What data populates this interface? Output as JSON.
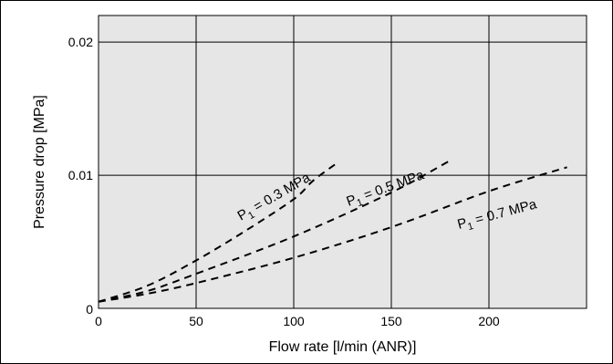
{
  "chart_data": {
    "type": "line",
    "title": "",
    "xlabel": "Flow rate [l/min (ANR)]",
    "ylabel": "Pressure drop [MPa]",
    "xlim": [
      0,
      250
    ],
    "ylim": [
      0,
      0.022
    ],
    "x_ticks": [
      0,
      50,
      100,
      150,
      200
    ],
    "x_tick_labels": [
      "0",
      "50",
      "100",
      "150",
      "200"
    ],
    "y_ticks": [
      0,
      0.01,
      0.02
    ],
    "y_tick_labels": [
      "0",
      "0.01",
      "0.02"
    ],
    "grid": true,
    "background_color": "#e6e6e6",
    "line_style": "dashed",
    "series": [
      {
        "name": "P1 = 0.3 MPa",
        "label_main": "P",
        "label_sub": "1",
        "label_rest": " = 0.3 MPa",
        "points": [
          [
            0,
            0.0005
          ],
          [
            25,
            0.0017
          ],
          [
            50,
            0.0036
          ],
          [
            75,
            0.0058
          ],
          [
            100,
            0.0082
          ],
          [
            110,
            0.0096
          ],
          [
            122,
            0.0109
          ]
        ]
      },
      {
        "name": "P1 = 0.5 MPa",
        "label_main": "P",
        "label_sub": "1",
        "label_rest": " = 0.5 MPa",
        "points": [
          [
            0,
            0.0005
          ],
          [
            25,
            0.0013
          ],
          [
            50,
            0.0026
          ],
          [
            100,
            0.0054
          ],
          [
            150,
            0.0087
          ],
          [
            180,
            0.0111
          ]
        ]
      },
      {
        "name": "P1 = 0.7 MPa",
        "label_main": "P",
        "label_sub": "1",
        "label_rest": " = 0.7 MPa",
        "points": [
          [
            0,
            0.0005
          ],
          [
            25,
            0.0011
          ],
          [
            50,
            0.0019
          ],
          [
            100,
            0.0038
          ],
          [
            150,
            0.0061
          ],
          [
            200,
            0.0088
          ],
          [
            240,
            0.0106
          ]
        ]
      }
    ]
  }
}
